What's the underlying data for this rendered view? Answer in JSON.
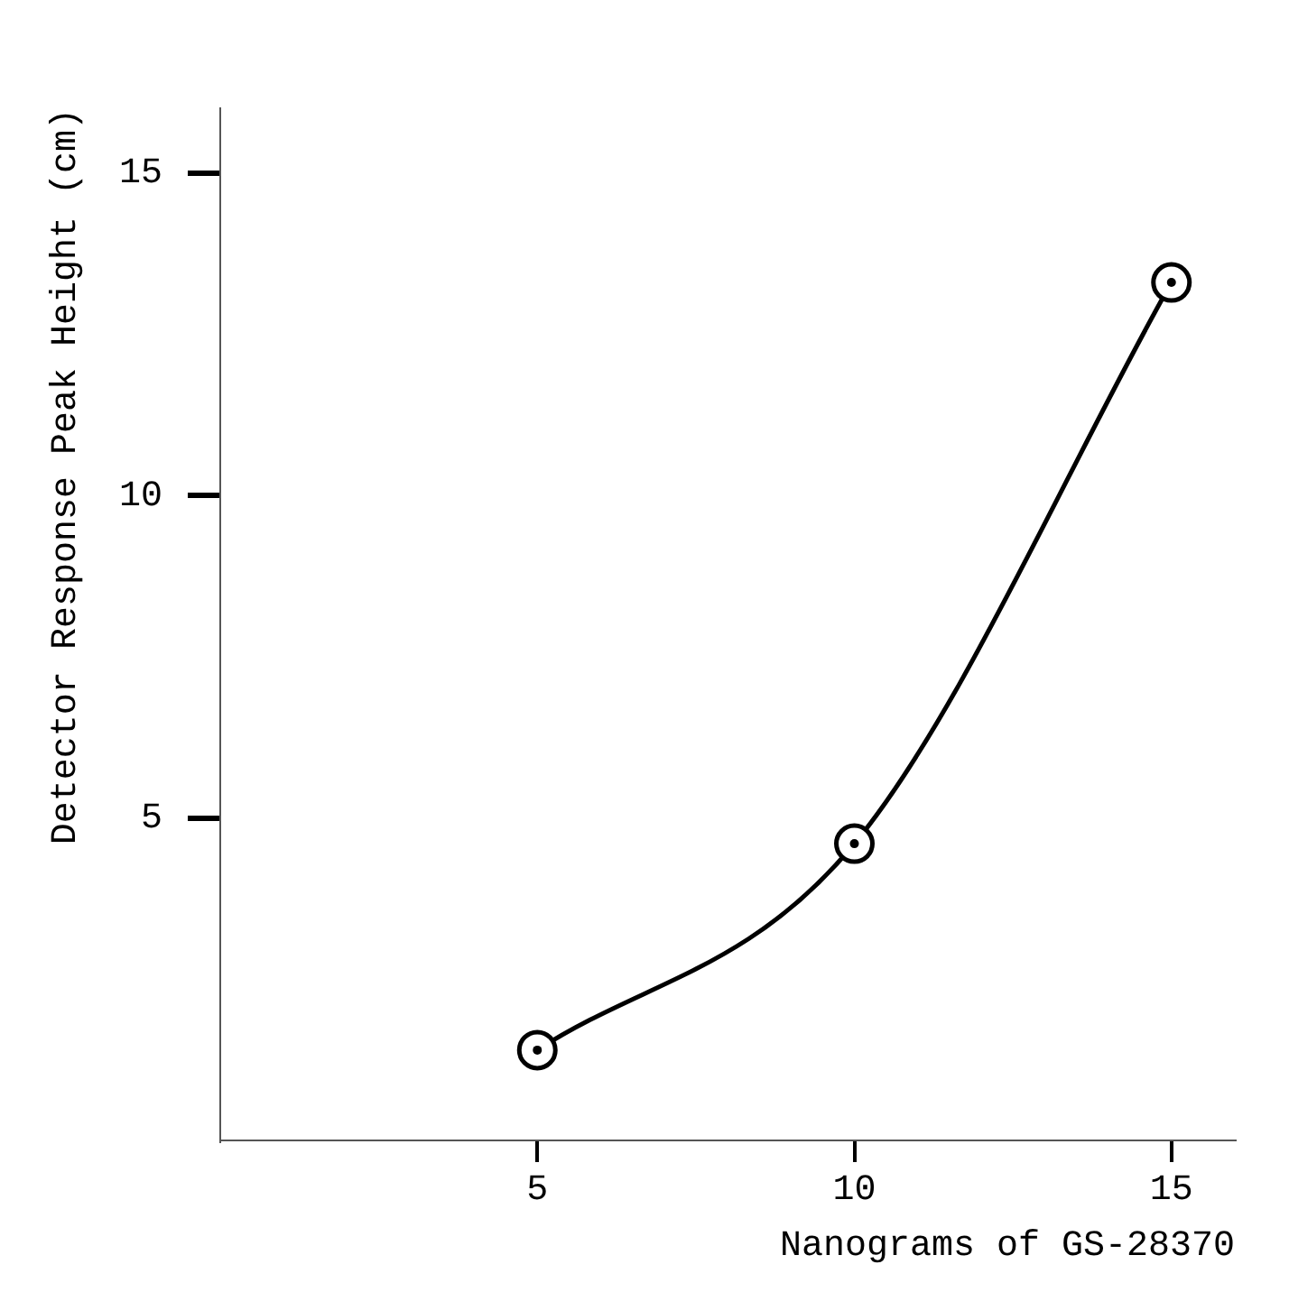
{
  "chart_data": {
    "type": "line",
    "xlabel": "Nanograms of GS-28370",
    "ylabel": "Detector Response Peak Height (cm)",
    "x": [
      5,
      10,
      15
    ],
    "values": [
      1.4,
      4.6,
      13.3
    ],
    "color": "#000000",
    "xlim": [
      0,
      16
    ],
    "ylim": [
      0,
      16
    ],
    "xticks": [
      5,
      10,
      15
    ],
    "yticks": [
      5,
      10,
      15
    ],
    "grid": false,
    "legend": false,
    "marker": "circle",
    "line_style": "solid"
  }
}
